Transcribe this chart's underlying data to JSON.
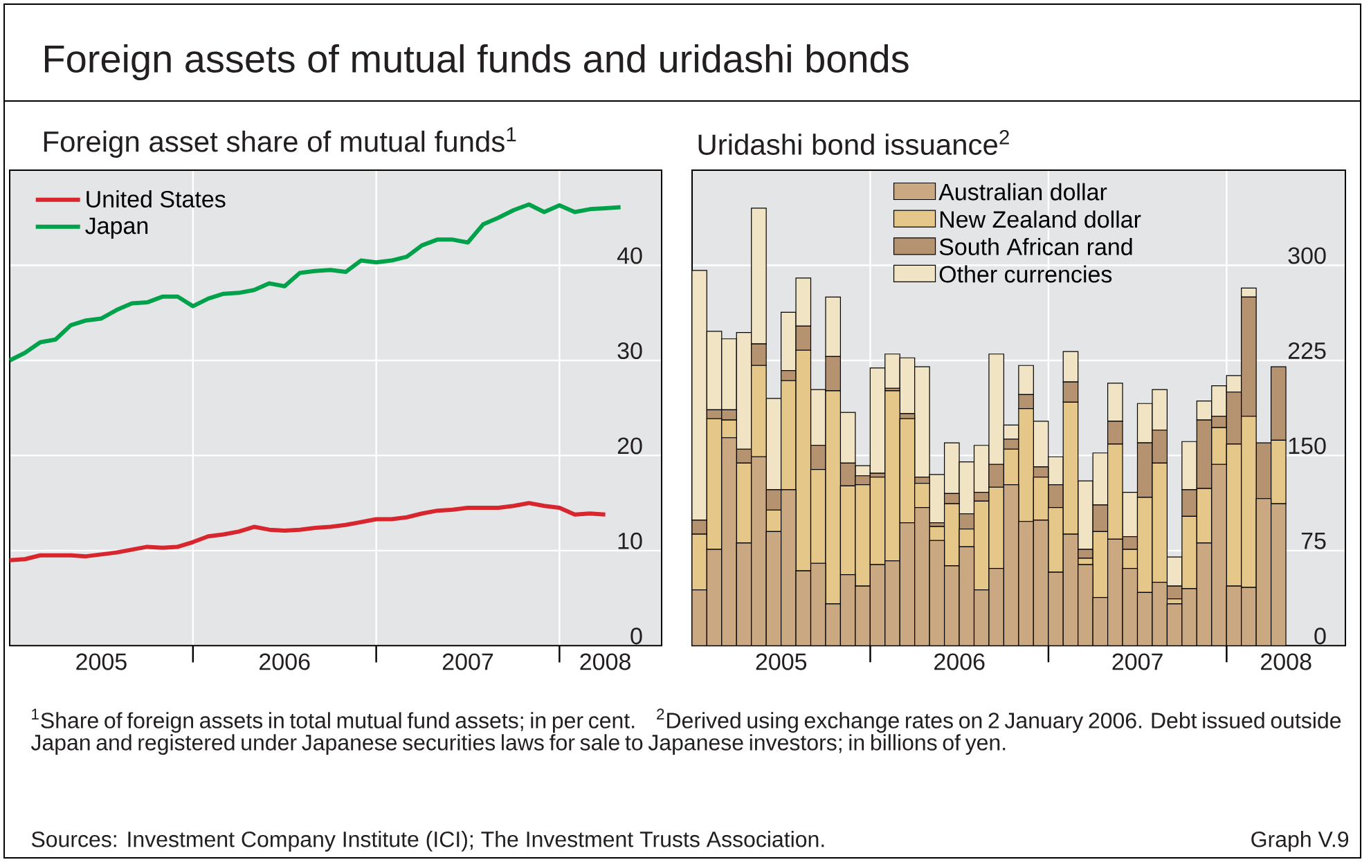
{
  "chart_data": [
    {
      "type": "line",
      "title": "Foreign assets of mutual funds and uridashi bonds",
      "subtitle": "Foreign asset share of mutual funds$^{1}$",
      "x": [
        "2005-01",
        "2005-02",
        "2005-03",
        "2005-04",
        "2005-05",
        "2005-06",
        "2005-07",
        "2005-08",
        "2005-09",
        "2005-10",
        "2005-11",
        "2005-12",
        "2006-01",
        "2006-02",
        "2006-03",
        "2006-04",
        "2006-05",
        "2006-06",
        "2006-07",
        "2006-08",
        "2006-09",
        "2006-10",
        "2006-11",
        "2006-12",
        "2007-01",
        "2007-02",
        "2007-03",
        "2007-04",
        "2007-05",
        "2007-06",
        "2007-07",
        "2007-08",
        "2007-09",
        "2007-10",
        "2007-11",
        "2007-12",
        "2008-01",
        "2008-02",
        "2008-03",
        "2008-04",
        "2008-05"
      ],
      "series": [
        {
          "name": "United States",
          "color": "#d7262e",
          "values": [
            9.0,
            9.1,
            9.5,
            9.5,
            9.5,
            9.4,
            9.6,
            9.8,
            10.1,
            10.4,
            10.3,
            10.4,
            10.9,
            11.5,
            11.7,
            12.0,
            12.5,
            12.2,
            12.1,
            12.2,
            12.4,
            12.5,
            12.7,
            13.0,
            13.3,
            13.3,
            13.5,
            13.9,
            14.2,
            14.3,
            14.5,
            14.5,
            14.5,
            14.7,
            15.0,
            14.7,
            14.5,
            13.8,
            13.9,
            13.8,
            null
          ]
        },
        {
          "name": "Japan",
          "color": "#00a14b",
          "values": [
            30.0,
            30.8,
            31.9,
            32.2,
            33.7,
            34.2,
            34.4,
            35.3,
            36.0,
            36.1,
            36.7,
            36.7,
            35.7,
            36.5,
            37.0,
            37.1,
            37.4,
            38.1,
            37.8,
            39.2,
            39.4,
            39.5,
            39.3,
            40.5,
            40.3,
            40.5,
            40.9,
            42.1,
            42.7,
            42.7,
            42.4,
            44.3,
            45.0,
            45.8,
            46.4,
            45.6,
            46.3,
            45.6,
            45.9,
            46.0,
            46.1
          ]
        }
      ],
      "xlim": [
        "2005-01",
        "2008-07-22"
      ],
      "xticks": [
        {
          "value": "2006-01",
          "label": null
        },
        {
          "value": "2007-01",
          "label": null
        },
        {
          "value": "2008-01",
          "label": null
        },
        {
          "value": "2005-07",
          "label": "2005"
        },
        {
          "value": "2006-07",
          "label": "2006"
        },
        {
          "value": "2007-07",
          "label": "2007"
        },
        {
          "value": "2008-04",
          "label": "2008"
        }
      ],
      "ylim": [
        0,
        50
      ],
      "yticks": [
        0,
        10,
        20,
        30,
        40
      ],
      "grid": true,
      "legend": "top left",
      "marker": "none",
      "line_style": "solid",
      "annotations": [
        "$^{1}$Share of foreign assets in total mutual fund assets; in per cent."
      ]
    },
    {
      "type": "bar",
      "stacked": true,
      "title": "Uridashi bond issuance$^{2}$",
      "x": [
        "2005-01-16",
        "2005-02-16",
        "2005-03-16",
        "2005-04-16",
        "2005-05-16",
        "2005-06-16",
        "2005-07-16",
        "2005-08-16",
        "2005-09-16",
        "2005-10-16",
        "2005-11-16",
        "2005-12-16",
        "2006-01-16",
        "2006-02-16",
        "2006-03-16",
        "2006-04-16",
        "2006-05-16",
        "2006-06-16",
        "2006-07-16",
        "2006-08-16",
        "2006-09-16",
        "2006-10-16",
        "2006-11-16",
        "2006-12-16",
        "2007-01-16",
        "2007-02-16",
        "2007-03-16",
        "2007-04-16",
        "2007-05-16",
        "2007-06-16",
        "2007-07-16",
        "2007-08-16",
        "2007-09-16",
        "2007-10-16",
        "2007-11-16",
        "2007-12-16",
        "2008-01-16",
        "2008-02-16",
        "2008-03-16",
        "2008-04-16"
      ],
      "series": [
        {
          "name": "Australian dollar",
          "color": "#c9a882",
          "values": [
            44,
            76,
            164,
            81,
            149,
            90,
            123,
            59,
            65,
            33,
            56,
            47,
            64,
            67,
            97,
            109,
            83,
            63,
            78,
            44,
            61,
            127,
            98,
            99,
            58,
            88,
            64,
            38,
            84,
            61,
            42,
            50,
            33,
            45,
            81,
            143,
            47,
            46,
            116,
            112
          ]
        },
        {
          "name": "New Zealand dollar",
          "color": "#e6c78a",
          "values": [
            44,
            103,
            14,
            63,
            72,
            17,
            86,
            174,
            74,
            168,
            70,
            80,
            69,
            134,
            82,
            19,
            11,
            49,
            14,
            70,
            64,
            28,
            89,
            34,
            51,
            104,
            5,
            52,
            75,
            15,
            75,
            94,
            4,
            57,
            43,
            29,
            112,
            135,
            0,
            50
          ]
        },
        {
          "name": "South African rand",
          "color": "#b59370",
          "values": [
            11,
            7,
            8,
            11,
            17,
            16,
            8,
            19,
            19,
            27,
            18,
            7,
            3,
            2,
            4,
            5,
            3,
            8,
            12,
            7,
            18,
            8,
            11,
            8,
            18,
            16,
            7,
            21,
            18,
            10,
            43,
            26,
            10,
            21,
            54,
            9,
            41,
            94,
            44,
            58
          ]
        },
        {
          "name": "Other currencies",
          "color": "#f1e4c4",
          "values": [
            197,
            62,
            56,
            92,
            107,
            72,
            46,
            38,
            44,
            47,
            40,
            8,
            83,
            27,
            44,
            87,
            38,
            40,
            41,
            37,
            87,
            11,
            23,
            36,
            22,
            24,
            54,
            41,
            30,
            35,
            31,
            32,
            23,
            38,
            15,
            24,
            13,
            7,
            0,
            0
          ]
        }
      ],
      "xlim": [
        "2005-01",
        "2008-09"
      ],
      "xticks": [
        {
          "value": "2006-01",
          "label": null
        },
        {
          "value": "2007-01",
          "label": null
        },
        {
          "value": "2008-01",
          "label": null
        },
        {
          "value": "2005-07",
          "label": "2005"
        },
        {
          "value": "2006-07",
          "label": "2006"
        },
        {
          "value": "2007-07",
          "label": "2007"
        },
        {
          "value": "2008-05",
          "label": "2008"
        }
      ],
      "ylim": [
        0,
        375
      ],
      "yticks": [
        0,
        75,
        150,
        225,
        300
      ],
      "grid": true,
      "legend": "top",
      "annotations": [
        "$^{2}$Derived using exchange rates on 2 January 2006. Debt issued outside Japan and registered under Japanese securities laws for sale to Japanese investors; in billions of yen.",
        "Sources: Investment Company Institute (ICI); The Investment Trusts Association.",
        "Graph V.9"
      ]
    }
  ]
}
